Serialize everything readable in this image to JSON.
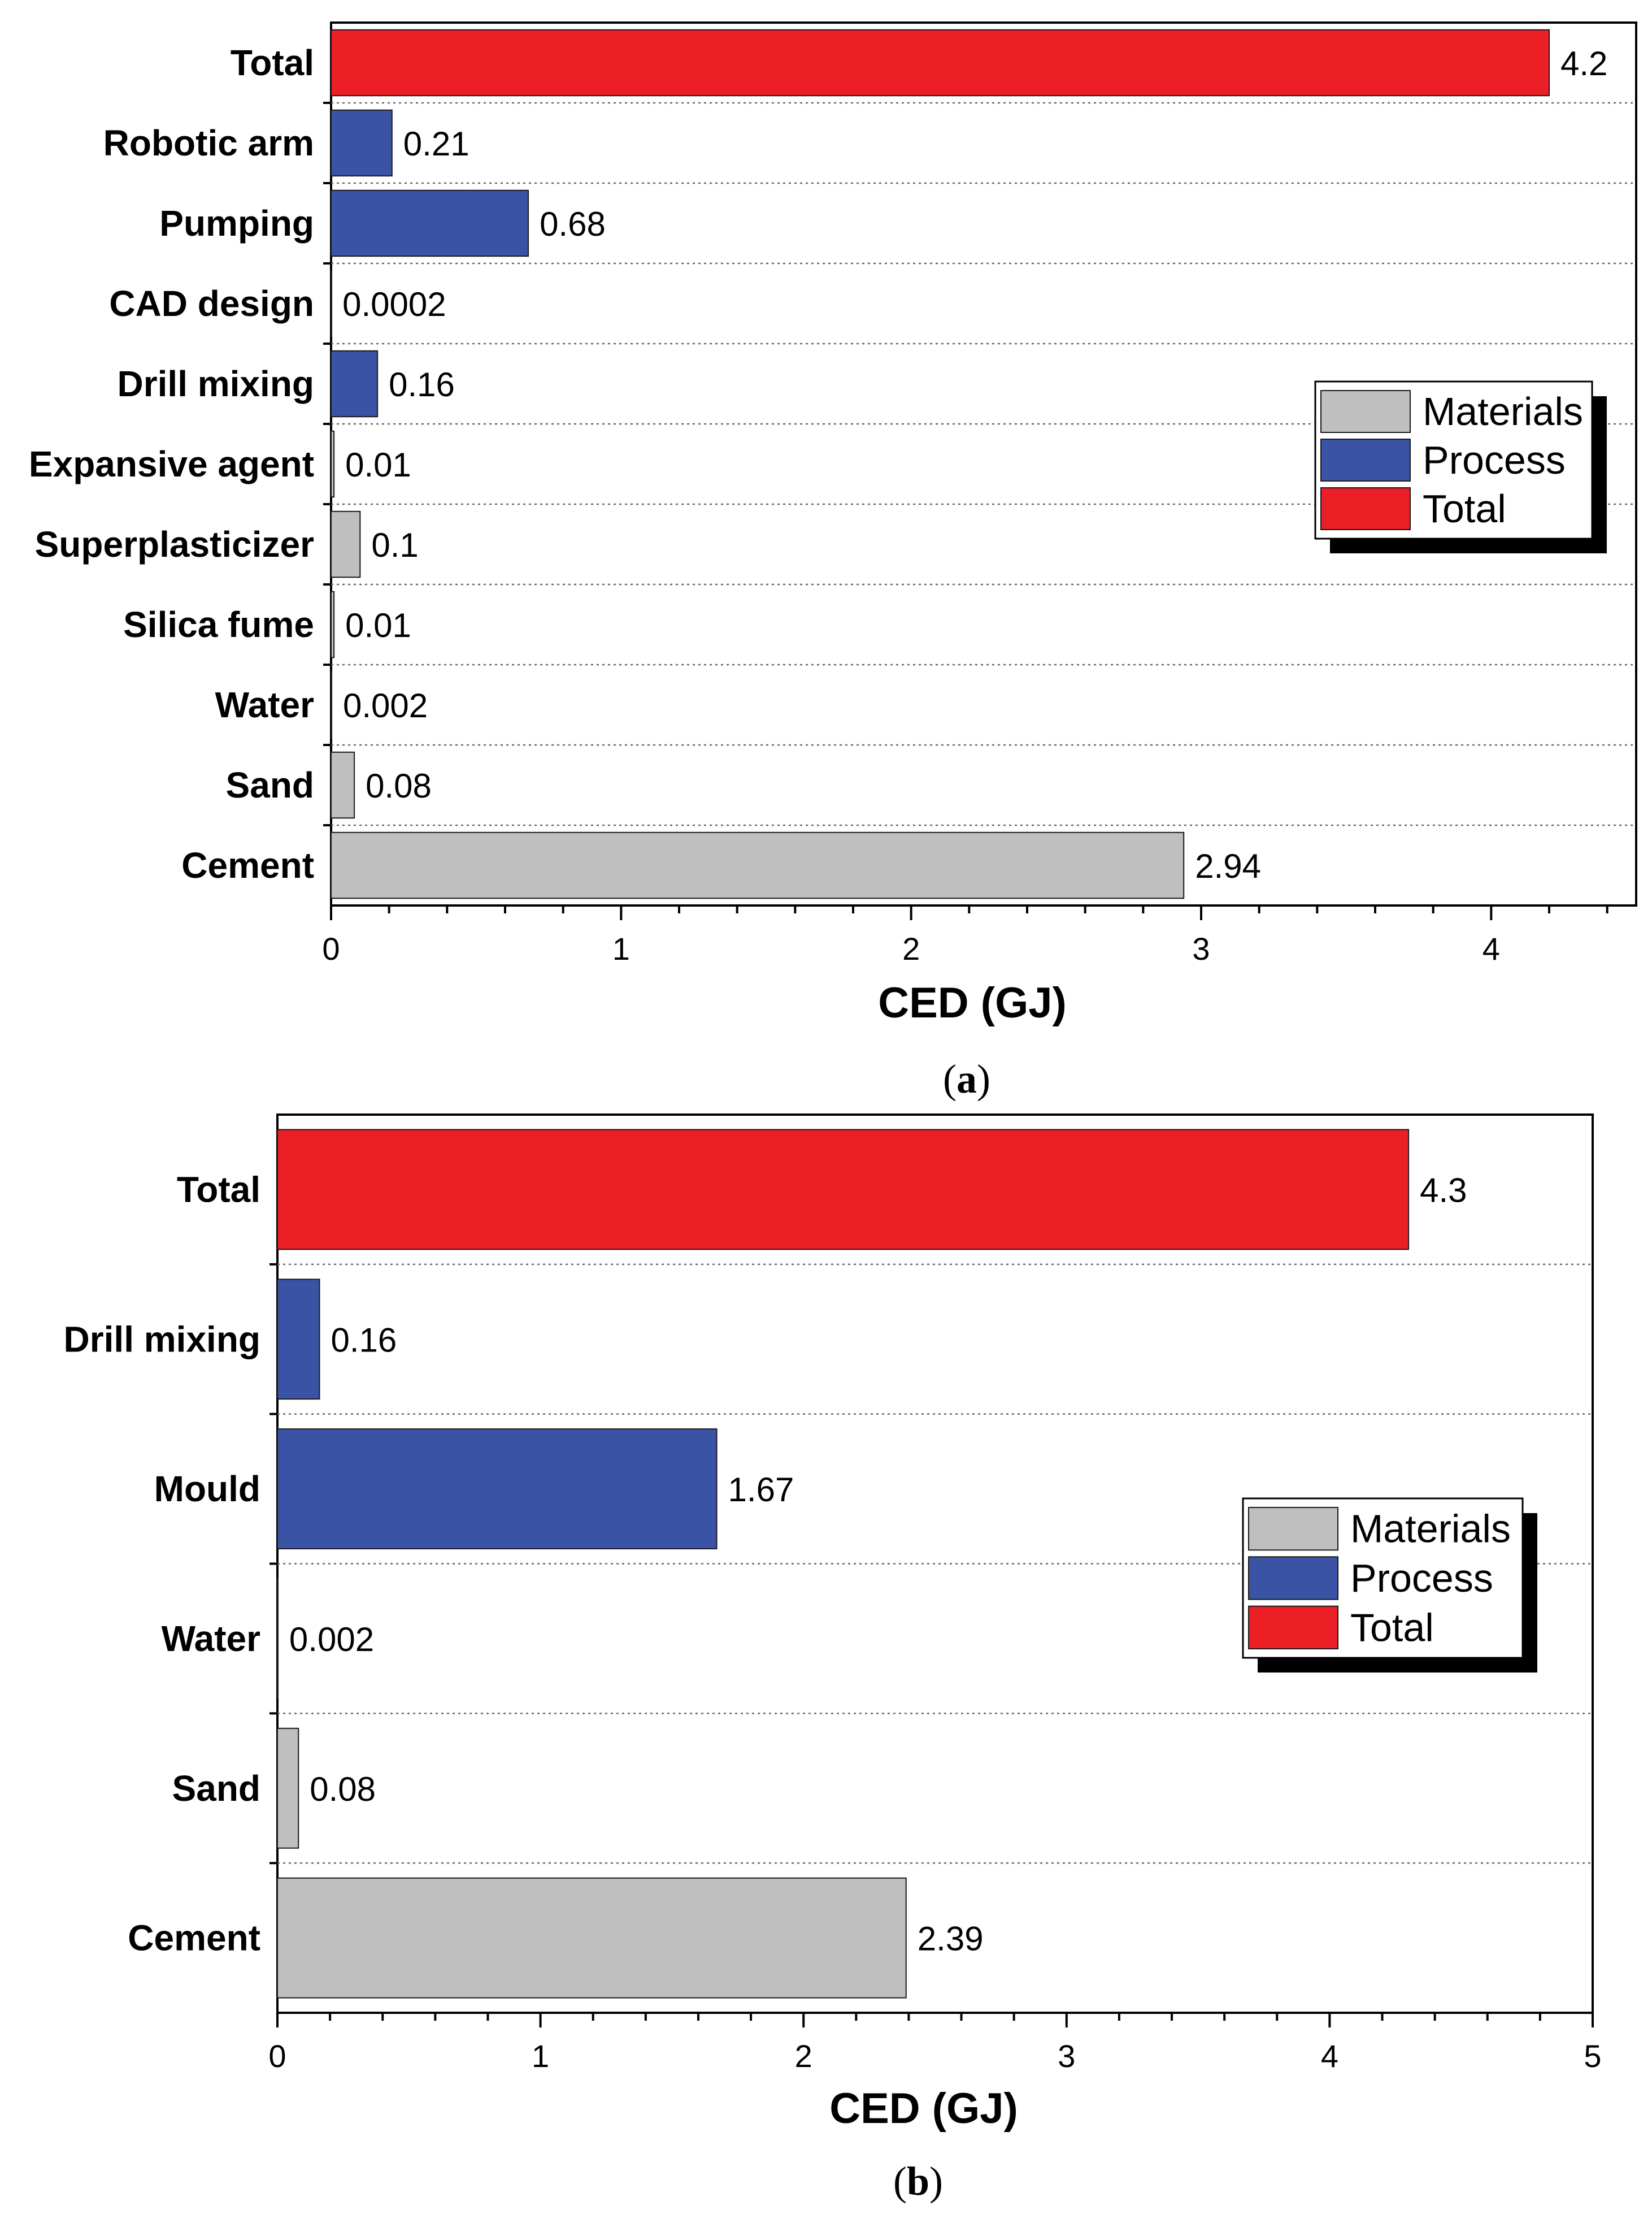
{
  "colors": {
    "materials": "#c0bfc0",
    "process": "#3a53a4",
    "total": "#ec1f26"
  },
  "chart_data": [
    {
      "type": "bar",
      "orientation": "horizontal",
      "caption_letter": "a",
      "xlabel": "CED (GJ)",
      "xlim": [
        0,
        4.5
      ],
      "xticks": [
        0,
        1,
        2,
        3,
        4
      ],
      "legend_position": "right",
      "legend": [
        {
          "label": "Materials",
          "group": "materials"
        },
        {
          "label": "Process",
          "group": "process"
        },
        {
          "label": "Total",
          "group": "total"
        }
      ],
      "categories": [
        "Total",
        "Robotic arm",
        "Pumping",
        "CAD design",
        "Drill mixing",
        "Expansive agent",
        "Superplasticizer",
        "Silica fume",
        "Water",
        "Sand",
        "Cement"
      ],
      "values": [
        4.2,
        0.21,
        0.68,
        0.0002,
        0.16,
        0.01,
        0.1,
        0.01,
        0.002,
        0.08,
        2.94
      ],
      "value_labels": [
        "4.2",
        "0.21",
        "0.68",
        "0.0002",
        "0.16",
        "0.01",
        "0.1",
        "0.01",
        "0.002",
        "0.08",
        "2.94"
      ],
      "groups": [
        "total",
        "process",
        "process",
        "process",
        "process",
        "materials",
        "materials",
        "materials",
        "materials",
        "materials",
        "materials"
      ]
    },
    {
      "type": "bar",
      "orientation": "horizontal",
      "caption_letter": "b",
      "xlabel": "CED (GJ)",
      "xlim": [
        0,
        5
      ],
      "xticks": [
        0,
        1,
        2,
        3,
        4,
        5
      ],
      "legend_position": "right",
      "legend": [
        {
          "label": "Materials",
          "group": "materials"
        },
        {
          "label": "Process",
          "group": "process"
        },
        {
          "label": "Total",
          "group": "total"
        }
      ],
      "categories": [
        "Total",
        "Drill mixing",
        "Mould",
        "Water",
        "Sand",
        "Cement"
      ],
      "values": [
        4.3,
        0.16,
        1.67,
        0.002,
        0.08,
        2.39
      ],
      "value_labels": [
        "4.3",
        "0.16",
        "1.67",
        "0.002",
        "0.08",
        "2.39"
      ],
      "groups": [
        "total",
        "process",
        "process",
        "materials",
        "materials",
        "materials"
      ]
    }
  ]
}
